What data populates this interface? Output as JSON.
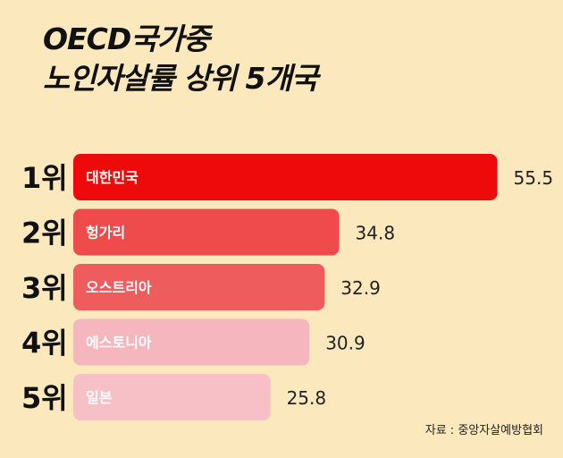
{
  "title_lines": [
    "OECD국가중",
    "노인자살률 상위 5개국"
  ],
  "source": "자료 : 중앙자살예방협회",
  "colors": [
    "#ee0a0a",
    "#ef4b4c",
    "#ef5c5e",
    "#f6b6bd",
    "#f7c0c6"
  ],
  "chart_data": {
    "type": "bar",
    "orientation": "horizontal",
    "title": "OECD국가중 노인자살률 상위 5개국",
    "ranks": [
      "1위",
      "2위",
      "3위",
      "4위",
      "5위"
    ],
    "categories": [
      "대한민국",
      "헝가리",
      "오스트리아",
      "에스토니아",
      "일본"
    ],
    "values": [
      55.5,
      34.8,
      32.9,
      30.9,
      25.8
    ],
    "value_labels": [
      "55.5",
      "34.8",
      "32.9",
      "30.9",
      "25.8"
    ],
    "grid": false,
    "legend": "none"
  }
}
